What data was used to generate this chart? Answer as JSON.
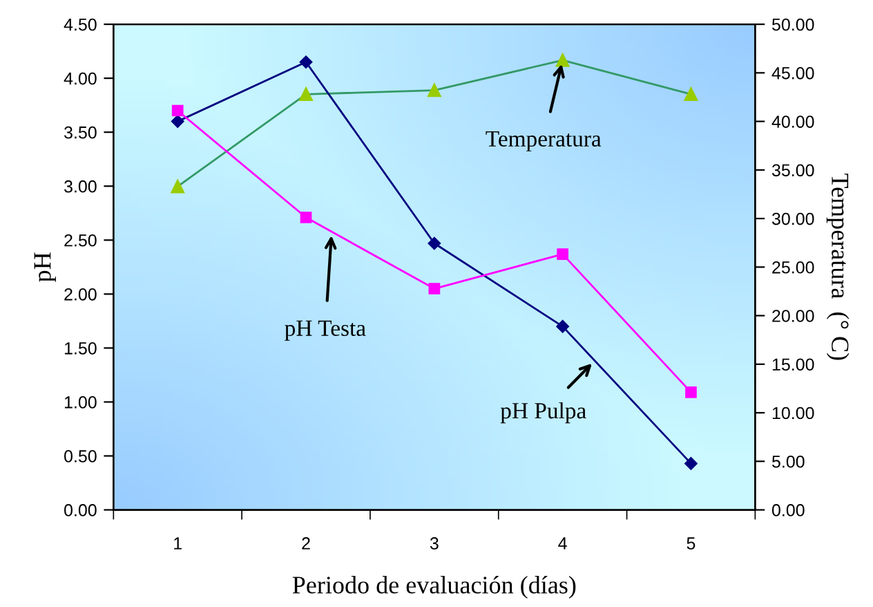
{
  "chart_data": {
    "type": "line",
    "xlabel": "Periodo de evaluación (días)",
    "ylabel": "pH",
    "y2label": "Temperatura  (° C)",
    "categories": [
      "1",
      "2",
      "3",
      "4",
      "5"
    ],
    "series": [
      {
        "name": "pH Pulpa",
        "color": "#000080",
        "marker": "diamond",
        "values": [
          3.6,
          4.15,
          2.47,
          1.7,
          0.43
        ]
      },
      {
        "name": "pH Testa",
        "color": "#ff00ff",
        "marker": "square",
        "values": [
          3.7,
          2.71,
          2.05,
          2.37,
          1.09
        ]
      },
      {
        "name": "Temperatura",
        "color": "#339966",
        "marker": "triangle",
        "axis": "y2",
        "values": [
          33.3,
          42.8,
          43.2,
          46.3,
          42.8
        ]
      }
    ],
    "ylim": [
      0,
      4.5
    ],
    "yticks": [
      {
        "value": 0,
        "label": "0.00"
      },
      {
        "value": 0.5,
        "label": "0.50"
      },
      {
        "value": 1,
        "label": "1.00"
      },
      {
        "value": 1.5,
        "label": "1.50"
      },
      {
        "value": 2,
        "label": "2.00"
      },
      {
        "value": 2.5,
        "label": "2.50"
      },
      {
        "value": 3,
        "label": "3.00"
      },
      {
        "value": 3.5,
        "label": "3.50"
      },
      {
        "value": 4,
        "label": "4.00"
      },
      {
        "value": 4.5,
        "label": "4.50"
      }
    ],
    "y2lim": [
      0,
      50
    ],
    "y2ticks": [
      {
        "value": 0,
        "label": "0.00"
      },
      {
        "value": 5,
        "label": "5.00"
      },
      {
        "value": 10,
        "label": "10.00"
      },
      {
        "value": 15,
        "label": "15.00"
      },
      {
        "value": 20,
        "label": "20.00"
      },
      {
        "value": 25,
        "label": "25.00"
      },
      {
        "value": 30,
        "label": "30.00"
      },
      {
        "value": 35,
        "label": "35.00"
      },
      {
        "value": 40,
        "label": "40.00"
      },
      {
        "value": 45,
        "label": "45.00"
      },
      {
        "value": 50,
        "label": "50.00"
      }
    ],
    "grid": false,
    "legend": false,
    "line_style": "solid"
  }
}
